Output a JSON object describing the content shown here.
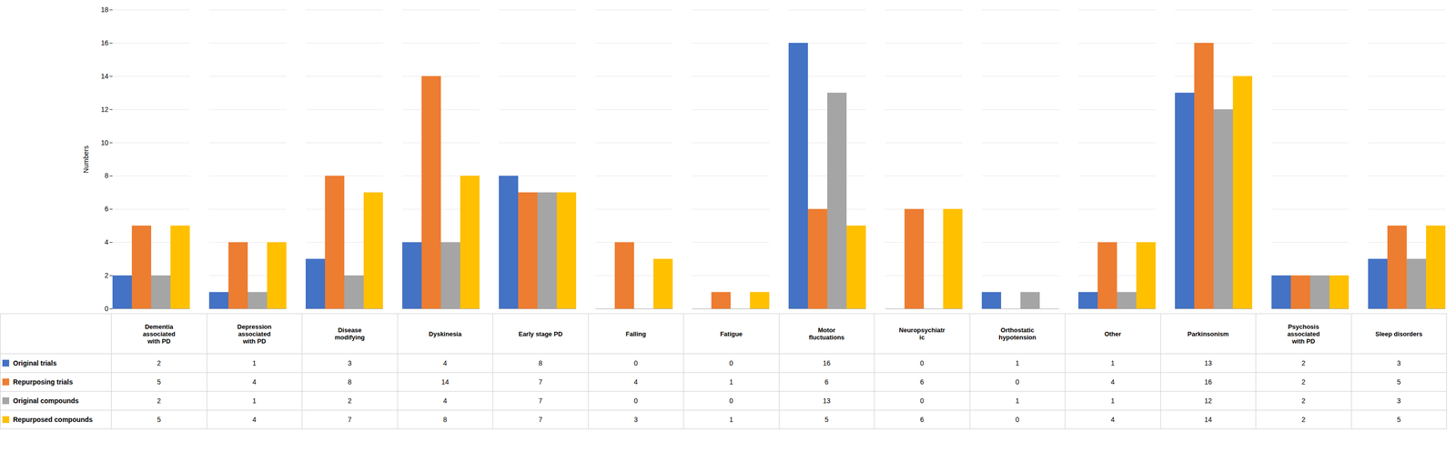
{
  "chart_data": {
    "type": "bar",
    "categories": [
      "Dementia\nassociated\nwith PD",
      "Depression\nassociated\nwith PD",
      "Disease\nmodifying",
      "Dyskinesia",
      "Early stage PD",
      "Falling",
      "Fatigue",
      "Motor\nfluctuations",
      "Neuropsychiatr\nic",
      "Orthostatic\nhypotension",
      "Other",
      "Parkinsonism",
      "Psychosis\nassociated\nwith PD",
      "Sleep disorders"
    ],
    "series": [
      {
        "name": "Original trials",
        "color": "#4472C4",
        "values": [
          2,
          1,
          3,
          4,
          8,
          0,
          0,
          16,
          0,
          1,
          1,
          13,
          2,
          3
        ]
      },
      {
        "name": "Repurposing trials",
        "color": "#ED7D31",
        "values": [
          5,
          4,
          8,
          14,
          7,
          4,
          1,
          6,
          6,
          0,
          4,
          16,
          2,
          5
        ]
      },
      {
        "name": "Original compounds",
        "color": "#A5A5A5",
        "values": [
          2,
          1,
          2,
          4,
          7,
          0,
          0,
          13,
          0,
          1,
          1,
          12,
          2,
          3
        ]
      },
      {
        "name": "Repurposed compounds",
        "color": "#FFC000",
        "values": [
          5,
          4,
          7,
          8,
          7,
          3,
          1,
          5,
          6,
          0,
          4,
          14,
          2,
          5
        ]
      }
    ],
    "ylabel": "Numbers",
    "ylim": [
      0,
      18
    ],
    "yticks": [
      0,
      2,
      4,
      6,
      8,
      10,
      12,
      14,
      16,
      18
    ],
    "grid": true,
    "legend": "bottom",
    "tick_labels": "y"
  }
}
